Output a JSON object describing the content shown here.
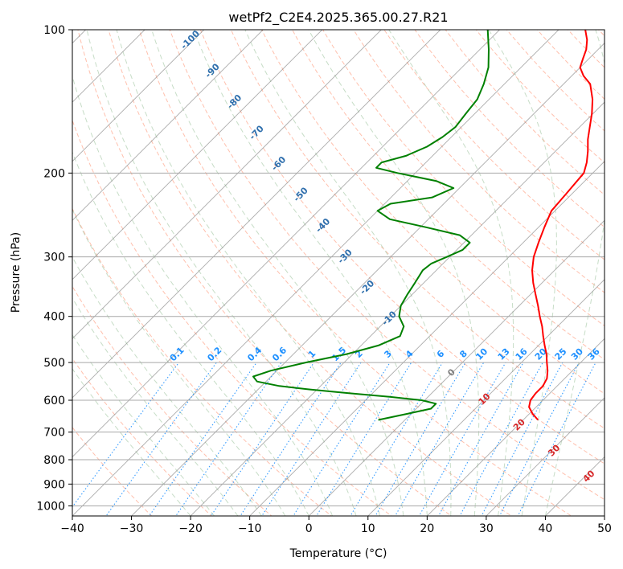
{
  "chart_data": {
    "type": "line",
    "subtype": "skew-t log-p",
    "title": "wetPf2_C2E4.2025.365.00.27.R21",
    "xlabel": "Temperature (°C)",
    "ylabel": "Pressure (hPa)",
    "xlim": [
      -40,
      50
    ],
    "ylim": [
      1050,
      100
    ],
    "y_scale": "log",
    "grid": true,
    "x_ticks": [
      "−40",
      "−30",
      "−20",
      "−10",
      "0",
      "10",
      "20",
      "30",
      "40",
      "50"
    ],
    "x_tick_values": [
      -40,
      -30,
      -20,
      -10,
      0,
      10,
      20,
      30,
      40,
      50
    ],
    "y_ticks": [
      "100",
      "200",
      "300",
      "400",
      "500",
      "600",
      "700",
      "800",
      "900",
      "1000"
    ],
    "y_tick_values": [
      100,
      200,
      300,
      400,
      500,
      600,
      700,
      800,
      900,
      1000
    ],
    "series": [
      {
        "role": "temperature",
        "color": "#ff0000",
        "points": [
          {
            "p": 660,
            "t": 22.5
          },
          {
            "p": 640,
            "t": 20.5
          },
          {
            "p": 620,
            "t": 18.8
          },
          {
            "p": 600,
            "t": 17.9
          },
          {
            "p": 580,
            "t": 17.6
          },
          {
            "p": 560,
            "t": 17.6
          },
          {
            "p": 540,
            "t": 17.0
          },
          {
            "p": 520,
            "t": 15.8
          },
          {
            "p": 500,
            "t": 14.3
          },
          {
            "p": 480,
            "t": 12.8
          },
          {
            "p": 460,
            "t": 11.0
          },
          {
            "p": 440,
            "t": 9.2
          },
          {
            "p": 420,
            "t": 7.4
          },
          {
            "p": 400,
            "t": 5.3
          },
          {
            "p": 380,
            "t": 3.2
          },
          {
            "p": 360,
            "t": 0.9
          },
          {
            "p": 340,
            "t": -1.5
          },
          {
            "p": 320,
            "t": -3.8
          },
          {
            "p": 300,
            "t": -5.8
          },
          {
            "p": 280,
            "t": -7.4
          },
          {
            "p": 260,
            "t": -9.0
          },
          {
            "p": 240,
            "t": -10.6
          },
          {
            "p": 220,
            "t": -11.0
          },
          {
            "p": 200,
            "t": -11.5
          },
          {
            "p": 190,
            "t": -12.8
          },
          {
            "p": 180,
            "t": -14.5
          },
          {
            "p": 170,
            "t": -16.5
          },
          {
            "p": 160,
            "t": -18.3
          },
          {
            "p": 150,
            "t": -20.2
          },
          {
            "p": 140,
            "t": -22.5
          },
          {
            "p": 130,
            "t": -25.5
          },
          {
            "p": 125,
            "t": -28.0
          },
          {
            "p": 120,
            "t": -30.0
          },
          {
            "p": 115,
            "t": -31.0
          },
          {
            "p": 110,
            "t": -32.0
          },
          {
            "p": 105,
            "t": -33.5
          },
          {
            "p": 100,
            "t": -35.5
          }
        ]
      },
      {
        "role": "dewpoint",
        "color": "#008000",
        "points": [
          {
            "p": 660,
            "t": -4.5
          },
          {
            "p": 640,
            "t": -0.5
          },
          {
            "p": 625,
            "t": 2.5
          },
          {
            "p": 610,
            "t": 2.5
          },
          {
            "p": 600,
            "t": -0.5
          },
          {
            "p": 590,
            "t": -6.5
          },
          {
            "p": 580,
            "t": -14.0
          },
          {
            "p": 570,
            "t": -21.0
          },
          {
            "p": 560,
            "t": -27.0
          },
          {
            "p": 548,
            "t": -31.5
          },
          {
            "p": 535,
            "t": -33.0
          },
          {
            "p": 520,
            "t": -31.0
          },
          {
            "p": 500,
            "t": -26.5
          },
          {
            "p": 480,
            "t": -21.0
          },
          {
            "p": 460,
            "t": -17.0
          },
          {
            "p": 440,
            "t": -15.0
          },
          {
            "p": 420,
            "t": -16.0
          },
          {
            "p": 400,
            "t": -18.5
          },
          {
            "p": 380,
            "t": -20.0
          },
          {
            "p": 360,
            "t": -20.8
          },
          {
            "p": 340,
            "t": -21.5
          },
          {
            "p": 320,
            "t": -22.3
          },
          {
            "p": 310,
            "t": -22.0
          },
          {
            "p": 300,
            "t": -20.5
          },
          {
            "p": 290,
            "t": -19.0
          },
          {
            "p": 280,
            "t": -19.0
          },
          {
            "p": 270,
            "t": -22.0
          },
          {
            "p": 260,
            "t": -29.0
          },
          {
            "p": 250,
            "t": -36.5
          },
          {
            "p": 240,
            "t": -40.0
          },
          {
            "p": 232,
            "t": -39.0
          },
          {
            "p": 225,
            "t": -33.0
          },
          {
            "p": 215,
            "t": -31.0
          },
          {
            "p": 208,
            "t": -35.0
          },
          {
            "p": 200,
            "t": -43.0
          },
          {
            "p": 195,
            "t": -47.5
          },
          {
            "p": 190,
            "t": -47.5
          },
          {
            "p": 184,
            "t": -44.5
          },
          {
            "p": 176,
            "t": -42.5
          },
          {
            "p": 168,
            "t": -41.5
          },
          {
            "p": 160,
            "t": -41.0
          },
          {
            "p": 150,
            "t": -41.5
          },
          {
            "p": 140,
            "t": -42.0
          },
          {
            "p": 130,
            "t": -43.5
          },
          {
            "p": 120,
            "t": -45.5
          },
          {
            "p": 110,
            "t": -48.5
          },
          {
            "p": 100,
            "t": -52.0
          }
        ]
      }
    ],
    "reference_lines": {
      "isotherm_color": "#808080",
      "dry_adiabat_color": "#ff8c69",
      "moist_adiabat_color": "#8fbc8f",
      "mixing_ratio_color": "#1e90ff",
      "dry_adiabat_labels": [
        {
          "text": "-100",
          "value": -100
        },
        {
          "text": "-90",
          "value": -90
        },
        {
          "text": "-80",
          "value": -80
        },
        {
          "text": "-70",
          "value": -70
        },
        {
          "text": "-60",
          "value": -60
        },
        {
          "text": "-50",
          "value": -50
        },
        {
          "text": "-40",
          "value": -40
        },
        {
          "text": "-30",
          "value": -30
        },
        {
          "text": "-20",
          "value": -20
        },
        {
          "text": "-10",
          "value": -10
        }
      ],
      "isotherm_label": {
        "text": "0",
        "value": 0
      },
      "warm_labels": [
        {
          "text": "10",
          "value": 10
        },
        {
          "text": "20",
          "value": 20
        },
        {
          "text": "30",
          "value": 30
        },
        {
          "text": "40",
          "value": 40
        }
      ],
      "mixing_ratio_labels": [
        {
          "text": "0.1",
          "value": 0.1
        },
        {
          "text": "0.2",
          "value": 0.2
        },
        {
          "text": "0.4",
          "value": 0.4
        },
        {
          "text": "0.6",
          "value": 0.6
        },
        {
          "text": "1",
          "value": 1
        },
        {
          "text": "1.5",
          "value": 1.5
        },
        {
          "text": "2",
          "value": 2
        },
        {
          "text": "3",
          "value": 3
        },
        {
          "text": "4",
          "value": 4
        },
        {
          "text": "6",
          "value": 6
        },
        {
          "text": "8",
          "value": 8
        },
        {
          "text": "10",
          "value": 10
        },
        {
          "text": "13",
          "value": 13
        },
        {
          "text": "16",
          "value": 16
        },
        {
          "text": "20",
          "value": 20
        },
        {
          "text": "25",
          "value": 25
        },
        {
          "text": "30",
          "value": 30
        },
        {
          "text": "36",
          "value": 36
        }
      ]
    }
  }
}
